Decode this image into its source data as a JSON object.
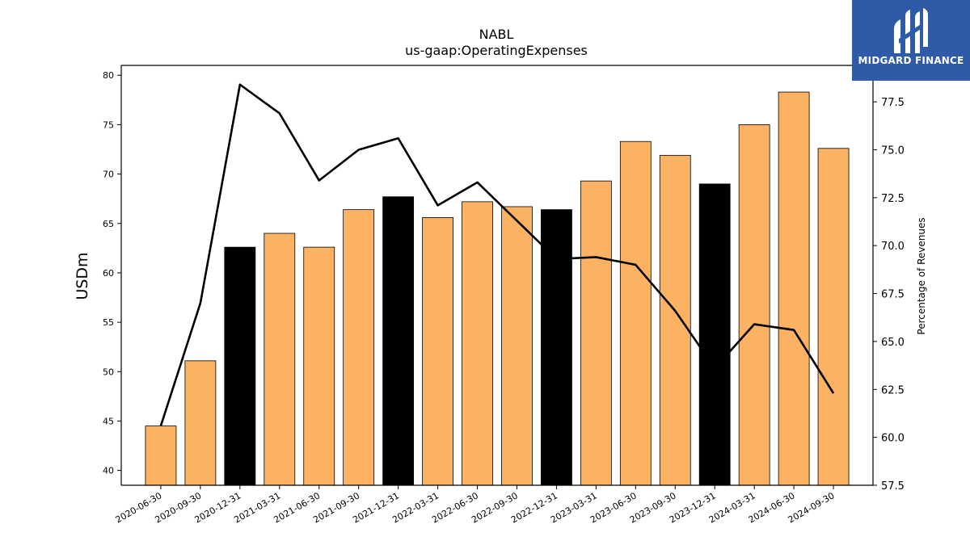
{
  "chart_data": {
    "type": "bar",
    "title": "NABL",
    "subtitle": "us-gaap:OperatingExpenses",
    "ylabel": "USDm",
    "y2label": "Percentage of Revenues",
    "categories": [
      "2020-06-30",
      "2020-09-30",
      "2020-12-31",
      "2021-03-31",
      "2021-06-30",
      "2021-09-30",
      "2021-12-31",
      "2022-03-31",
      "2022-06-30",
      "2022-09-30",
      "2022-12-31",
      "2023-03-31",
      "2023-06-30",
      "2023-09-30",
      "2023-12-31",
      "2024-03-31",
      "2024-06-30",
      "2024-09-30"
    ],
    "values": [
      44.5,
      51.1,
      62.6,
      64.0,
      62.6,
      66.4,
      67.7,
      65.6,
      67.2,
      66.7,
      66.4,
      69.3,
      73.3,
      71.9,
      69.0,
      75.0,
      78.3,
      72.6
    ],
    "bar_colors": [
      "#fbb263",
      "#fbb263",
      "#000000",
      "#fbb263",
      "#fbb263",
      "#fbb263",
      "#000000",
      "#fbb263",
      "#fbb263",
      "#fbb263",
      "#000000",
      "#fbb263",
      "#fbb263",
      "#fbb263",
      "#000000",
      "#fbb263",
      "#fbb263",
      "#fbb263"
    ],
    "line_values": [
      60.6,
      67.0,
      78.4,
      76.9,
      73.4,
      75.0,
      75.6,
      72.1,
      73.3,
      71.3,
      69.3,
      69.4,
      69.0,
      66.6,
      63.6,
      65.9,
      65.6,
      62.3
    ],
    "ylim": [
      38.5,
      81.0
    ],
    "y2lim": [
      57.5,
      79.4
    ],
    "yticks": [
      40,
      45,
      50,
      55,
      60,
      65,
      70,
      75,
      80
    ],
    "y2ticks": [
      "57.5",
      "60.0",
      "62.5",
      "65.0",
      "67.5",
      "70.0",
      "72.5",
      "75.0",
      "77.5"
    ],
    "grid": false,
    "legend": "none",
    "colors": {
      "bar_default": "#fbb263",
      "bar_year_end": "#000000",
      "line": "#000000"
    }
  },
  "logo": {
    "text": "MIDGARD FINANCE",
    "color": "#2f5aa8"
  }
}
